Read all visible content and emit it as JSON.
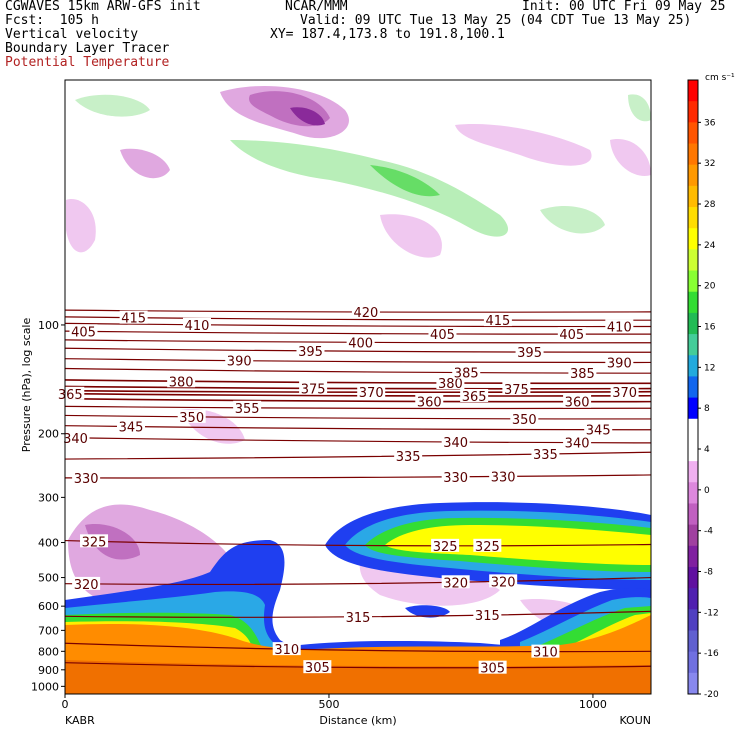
{
  "header": {
    "model": "CGWAVES 15km ARW-GFS init",
    "org": "NCAR/MMM",
    "init": "Init: 00 UTC Fri 09 May 25",
    "fcst": "Fcst:  105 h",
    "valid": "Valid: 09 UTC Tue 13 May 25 (04 CDT Tue 13 May 25)",
    "xy": "XY= 187.4,173.8 to 191.8,100.1",
    "field1": "Vertical velocity",
    "field2": "Boundary Layer Tracer",
    "field3": "Potential Temperature"
  },
  "colors": {
    "theta_line": "#7a0000",
    "tracer_orange": "#ff8c00",
    "tracer_darkorange": "#f07000"
  },
  "chart_data": {
    "type": "heatmap",
    "title": "Vertical velocity / Boundary Layer Tracer / Potential Temperature cross-section",
    "xlabel": "Distance (km)",
    "ylabel": "Pressure (hPa), log scale",
    "xlim": [
      0,
      1110
    ],
    "ylim": [
      1050,
      21
    ],
    "x_ticks": [
      "0",
      "500",
      "1000"
    ],
    "x_tick_values": [
      0,
      500,
      1000
    ],
    "y_ticks": [
      "100",
      "200",
      "300",
      "400",
      "500",
      "600",
      "700",
      "800",
      "900",
      "1000"
    ],
    "y_tick_values": [
      100,
      200,
      300,
      400,
      500,
      600,
      700,
      800,
      900,
      1000
    ],
    "endpoints": {
      "left": "KABR",
      "right": "KOUN"
    },
    "colorbar": {
      "unit": "cm s⁻¹",
      "ticks": [
        "36",
        "32",
        "28",
        "24",
        "20",
        "16",
        "12",
        "8",
        "4",
        "0",
        "-4",
        "-8",
        "-12",
        "-16",
        "-20"
      ],
      "colors": [
        "#ff0000",
        "#ff2a00",
        "#ff5500",
        "#ff7700",
        "#ff9900",
        "#ffbb00",
        "#ffdd00",
        "#ffff00",
        "#ccff33",
        "#88ff33",
        "#33dd33",
        "#22bb55",
        "#44cc99",
        "#22aadd",
        "#1166ee",
        "#0000ff",
        "#ffffff",
        "#ffffff",
        "#f0b0f0",
        "#dd88dd",
        "#c060c0",
        "#a040a0",
        "#8020a0",
        "#6010a0",
        "#5020b0",
        "#5040c0",
        "#6060d0",
        "#7070e0",
        "#8888ee"
      ]
    },
    "theta_contours": [
      {
        "value": 305,
        "label_x": [
          478,
          810
        ]
      },
      {
        "value": 310,
        "label_x": [
          420,
          910
        ]
      },
      {
        "value": 315,
        "label_x": [
          555,
          800
        ]
      },
      {
        "value": 320,
        "label_x": [
          40,
          740,
          830
        ]
      },
      {
        "value": 325,
        "label_x": [
          55,
          720,
          800
        ]
      },
      {
        "value": 330,
        "label_x": [
          40,
          740,
          830
        ]
      },
      {
        "value": 335,
        "label_x": [
          650,
          910
        ]
      },
      {
        "value": 340,
        "label_x": [
          20,
          740,
          970
        ]
      },
      {
        "value": 345,
        "label_x": [
          125,
          1010
        ]
      },
      {
        "value": 350,
        "label_x": [
          240,
          870
        ]
      },
      {
        "value": 355,
        "label_x": [
          345
        ]
      },
      {
        "value": 360,
        "label_x": [
          690,
          970
        ]
      },
      {
        "value": 365,
        "label_x": [
          10,
          775
        ]
      },
      {
        "value": 370,
        "label_x": [
          580,
          1060
        ]
      },
      {
        "value": 375,
        "label_x": [
          470,
          855
        ]
      },
      {
        "value": 380,
        "label_x": [
          220,
          730
        ]
      },
      {
        "value": 385,
        "label_x": [
          760,
          980
        ]
      },
      {
        "value": 390,
        "label_x": [
          330,
          1050
        ]
      },
      {
        "value": 395,
        "label_x": [
          465,
          880
        ]
      },
      {
        "value": 400,
        "label_x": [
          560
        ]
      },
      {
        "value": 405,
        "label_x": [
          35,
          715,
          960
        ]
      },
      {
        "value": 410,
        "label_x": [
          250,
          1050
        ]
      },
      {
        "value": 415,
        "label_x": [
          130,
          820
        ]
      },
      {
        "value": 420,
        "label_x": [
          570
        ]
      }
    ],
    "tracer_regions": [
      {
        "name": "boundary layer",
        "x": [
          0,
          1110
        ],
        "p_top": [
          510,
          620
        ]
      },
      {
        "name": "elevated plume",
        "x": [
          520,
          1110
        ],
        "p": [
          270,
          420
        ]
      }
    ],
    "legend_placement": "right colorbar"
  }
}
